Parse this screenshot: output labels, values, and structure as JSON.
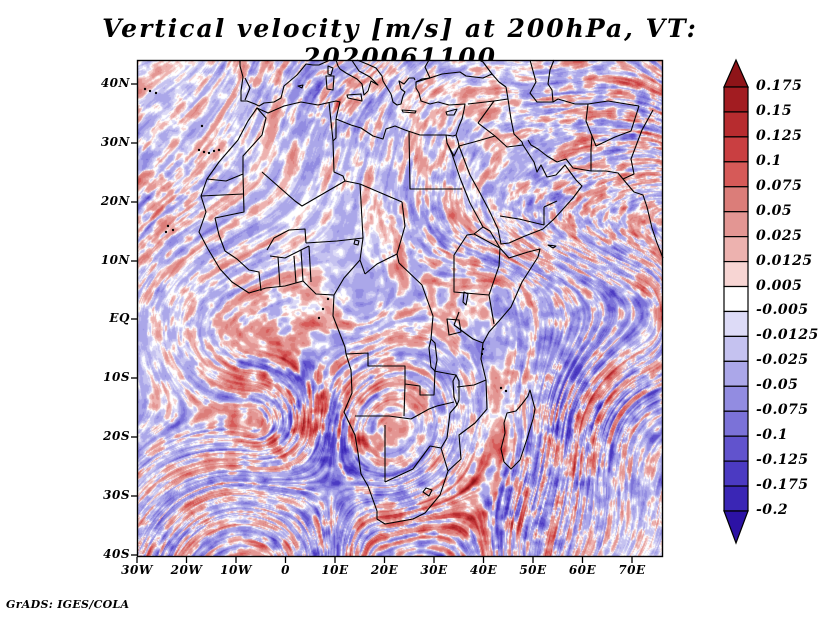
{
  "title": "Vertical velocity [m/s] at 200hPa, VT: 2020061100",
  "attribution": "GrADS: IGES/COLA",
  "axes": {
    "lat_labels": [
      "40N",
      "30N",
      "20N",
      "10N",
      "EQ",
      "10S",
      "20S",
      "30S",
      "40S"
    ],
    "lon_labels": [
      "30W",
      "20W",
      "10W",
      "0",
      "10E",
      "20E",
      "30E",
      "40E",
      "50E",
      "60E",
      "70E"
    ]
  },
  "colorbar": {
    "labels": [
      "0.175",
      "0.15",
      "0.125",
      "0.1",
      "0.075",
      "0.05",
      "0.025",
      "0.0125",
      "0.005",
      "-0.005",
      "-0.0125",
      "-0.025",
      "-0.05",
      "-0.075",
      "-0.1",
      "-0.125",
      "-0.175",
      "-0.2"
    ],
    "colors_top_to_bottom": [
      "#8e1418",
      "#a21c21",
      "#b72c2f",
      "#c93f41",
      "#d65a58",
      "#db7d79",
      "#e39693",
      "#edb2af",
      "#f7d5d3",
      "#ffffff",
      "#dddbf7",
      "#c5c2f0",
      "#aba7e9",
      "#928ce1",
      "#7b72d8",
      "#6153cd",
      "#4b3ac2",
      "#3a26b5",
      "#2c12a5"
    ]
  },
  "chart_data": {
    "type": "heatmap",
    "title": "Vertical velocity [m/s] at 200hPa, VT: 2020061100",
    "variable": "Vertical velocity",
    "units": "m/s",
    "pressure_level": "200hPa",
    "valid_time": "2020061100",
    "region": "Africa / Middle East",
    "lon_range": [
      -30,
      76
    ],
    "lat_range": [
      -40.5,
      44
    ],
    "lon_tick_labels": [
      "30W",
      "20W",
      "10W",
      "0",
      "10E",
      "20E",
      "30E",
      "40E",
      "50E",
      "60E",
      "70E"
    ],
    "lat_tick_labels": [
      "40N",
      "30N",
      "20N",
      "10N",
      "EQ",
      "10S",
      "20S",
      "30S",
      "40S"
    ],
    "contour_levels": [
      0.175,
      0.15,
      0.125,
      0.1,
      0.075,
      0.05,
      0.025,
      0.0125,
      0.005,
      -0.005,
      -0.0125,
      -0.025,
      -0.05,
      -0.075,
      -0.1,
      -0.125,
      -0.175,
      -0.2
    ],
    "palette_top_to_bottom": [
      "#8e1418",
      "#a21c21",
      "#b72c2f",
      "#c93f41",
      "#d65a58",
      "#db7d79",
      "#e39693",
      "#edb2af",
      "#f7d5d3",
      "#ffffff",
      "#dddbf7",
      "#c5c2f0",
      "#aba7e9",
      "#928ce1",
      "#7b72d8",
      "#6153cd",
      "#4b3ac2",
      "#3a26b5",
      "#2c12a5"
    ],
    "legend_position": "right",
    "grid": false,
    "attribution": "GrADS: IGES/COLA"
  }
}
